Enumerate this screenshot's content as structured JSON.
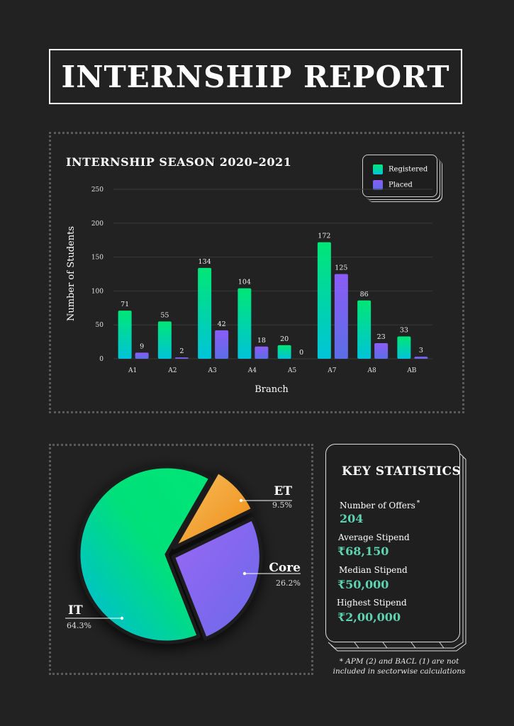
{
  "title": "INTERNSHIP REPORT",
  "bar_chart": {
    "title": "INTERNSHIP SEASON 2020–2021",
    "legend": {
      "registered": "Registered",
      "placed": "Placed"
    }
  },
  "key_stats": {
    "title": "KEY STATISTICS",
    "items": [
      {
        "label": "Number of Offers",
        "value": "204"
      },
      {
        "label": "Average Stipend",
        "value": "₹68,150"
      },
      {
        "label": "Median Stipend",
        "value": "₹50,000"
      },
      {
        "label": "Highest Stipend",
        "value": "₹2,00,000"
      }
    ],
    "asterisk": "*",
    "footnote_line1": "* APM (2) and BACL (1) are not",
    "footnote_line2": "included in sectorwise calculations"
  },
  "colors": {
    "background": "#222222",
    "registered_top": "#00e676",
    "registered_bottom": "#00c4d8",
    "placed_top": "#8b5cf6",
    "placed_bottom": "#5b6ee6",
    "et": "#f0a024",
    "core": "#8060f0",
    "it": "#00e07a",
    "stat_value": "#5ed3b0"
  },
  "chart_data": [
    {
      "type": "bar",
      "title": "INTERNSHIP SEASON 2020–2021",
      "xlabel": "Branch",
      "ylabel": "Number of Students",
      "categories": [
        "A1",
        "A2",
        "A3",
        "A4",
        "A5",
        "A7",
        "A8",
        "AB"
      ],
      "series": [
        {
          "name": "Registered",
          "values": [
            71,
            55,
            134,
            104,
            20,
            172,
            86,
            33
          ]
        },
        {
          "name": "Placed",
          "values": [
            9,
            2,
            42,
            18,
            0,
            125,
            23,
            3
          ]
        }
      ],
      "ylim": [
        0,
        250
      ],
      "yticks": [
        0,
        50,
        100,
        150,
        200,
        250
      ],
      "grid": true,
      "legend_position": "top-right"
    },
    {
      "type": "pie",
      "slices": [
        {
          "label": "ET",
          "value": 9.5,
          "display": "9.5%"
        },
        {
          "label": "Core",
          "value": 26.2,
          "display": "26.2%"
        },
        {
          "label": "IT",
          "value": 64.3,
          "display": "64.3%"
        }
      ]
    }
  ]
}
